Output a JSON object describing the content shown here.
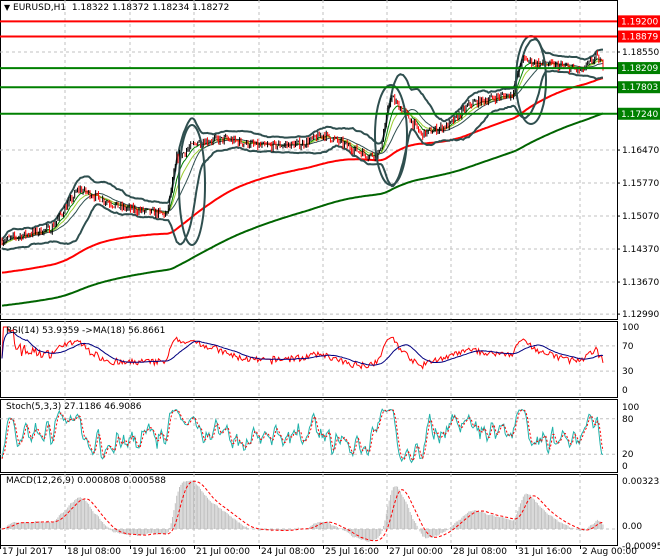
{
  "header": {
    "symbol": "EURUSD,H1",
    "open": "1.18322",
    "high": "1.18372",
    "low": "1.18234",
    "close": "1.18272"
  },
  "price_axis": [
    "1.18550",
    "1.16470",
    "1.15770",
    "1.15070",
    "1.14370",
    "1.13670",
    "1.12990"
  ],
  "levels": [
    {
      "value": 1.192,
      "label": "1.19200",
      "color": "#ff0000"
    },
    {
      "value": 1.18879,
      "label": "1.18879",
      "color": "#ff0000"
    },
    {
      "value": 1.18209,
      "label": "1.18209",
      "color": "#008000"
    },
    {
      "value": 1.17803,
      "label": "1.17803",
      "color": "#008000"
    },
    {
      "value": 1.1724,
      "label": "1.17240",
      "color": "#008000"
    }
  ],
  "rsi": {
    "label": "RSI(14) 53.9359  ->MA(18) 56.8661",
    "axis": [
      "100",
      "70",
      "30",
      "0"
    ]
  },
  "stoch": {
    "label": "Stoch(5,3,3) 27.1186 46.9086",
    "axis": [
      "100",
      "80",
      "20",
      "0"
    ]
  },
  "macd": {
    "label": "MACD(12,26,9) 0.000808 0.000588",
    "axis": [
      "0.003235",
      "0.00",
      "-0.00095"
    ]
  },
  "time_axis": [
    "17 Jul 2017",
    "18 Jul 08:00",
    "19 Jul 16:00",
    "21 Jul 00:00",
    "24 Jul 08:00",
    "25 Jul 16:00",
    "27 Jul 00:00",
    "28 Jul 08:00",
    "31 Jul 16:00",
    "2 Aug 00:00"
  ],
  "chart_data": {
    "type": "candlestick",
    "title": "EURUSD,H1",
    "price_keyframes": [
      [
        0,
        1.1455
      ],
      [
        20,
        1.147
      ],
      [
        35,
        1.148
      ],
      [
        55,
        1.1565
      ],
      [
        70,
        1.1545
      ],
      [
        85,
        1.1525
      ],
      [
        118,
        1.151
      ],
      [
        125,
        1.163
      ],
      [
        140,
        1.1665
      ],
      [
        160,
        1.167
      ],
      [
        185,
        1.1655
      ],
      [
        215,
        1.166
      ],
      [
        230,
        1.168
      ],
      [
        262,
        1.1635
      ],
      [
        270,
        1.164
      ],
      [
        278,
        1.176
      ],
      [
        290,
        1.172
      ],
      [
        300,
        1.168
      ],
      [
        320,
        1.17
      ],
      [
        335,
        1.1745
      ],
      [
        355,
        1.176
      ],
      [
        365,
        1.1765
      ],
      [
        372,
        1.184
      ],
      [
        385,
        1.183
      ],
      [
        400,
        1.1825
      ],
      [
        415,
        1.1815
      ],
      [
        425,
        1.1845
      ],
      [
        430,
        1.1827
      ]
    ],
    "ylim": [
      1.129,
      1.195
    ]
  }
}
